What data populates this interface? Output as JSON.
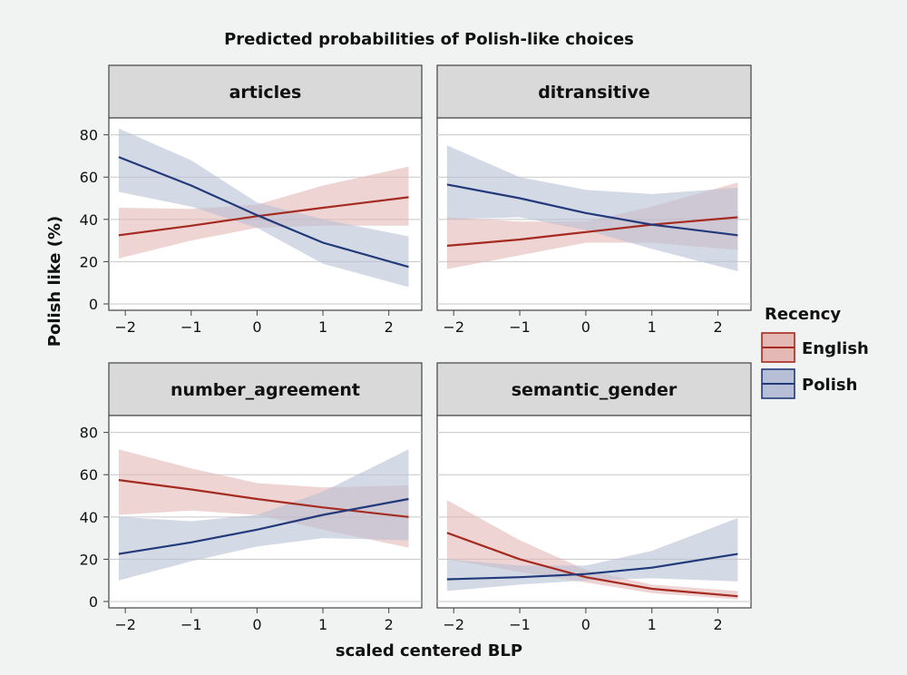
{
  "title": "Predicted probabilities of Polish-like choices",
  "xlabel": "scaled centered BLP",
  "ylabel": "Polish like (%)",
  "legend": {
    "title": "Recency",
    "items": [
      {
        "name": "English",
        "color": "#a52a20"
      },
      {
        "name": "Polish",
        "color": "#223a7a"
      }
    ]
  },
  "colors": {
    "english_line": "#a52a20",
    "english_band": "#e3b8b5",
    "polish_line": "#223a7a",
    "polish_band": "#b7bfd6",
    "panel_bg": "#ffffff",
    "strip_bg": "#d9d9d9",
    "grid": "#c7c7c7"
  },
  "chart_data": {
    "type": "line",
    "x_ticks": [
      -2,
      -1,
      0,
      1,
      2
    ],
    "y_ticks": [
      0,
      20,
      40,
      60,
      80
    ],
    "xlim": [
      -2.25,
      2.5
    ],
    "ylim": [
      -3,
      88
    ],
    "panels": [
      {
        "name": "articles",
        "series": [
          {
            "name": "English",
            "x": [
              -2.1,
              -1,
              0,
              1,
              2.3
            ],
            "y": [
              32.5,
              37,
              41.5,
              45.5,
              50.5
            ],
            "lower": [
              21.5,
              30,
              36,
              37,
              37
            ],
            "upper": [
              45.5,
              45,
              47,
              56,
              65
            ]
          },
          {
            "name": "Polish",
            "x": [
              -2.1,
              -1,
              0,
              1,
              2.3
            ],
            "y": [
              69.5,
              56,
              42,
              29,
              17.5
            ],
            "lower": [
              53,
              46,
              36,
              19,
              8
            ],
            "upper": [
              83,
              68,
              48,
              40,
              32
            ]
          }
        ]
      },
      {
        "name": "ditransitive",
        "series": [
          {
            "name": "English",
            "x": [
              -2.1,
              -1,
              0,
              1,
              2.3
            ],
            "y": [
              27.5,
              30.5,
              34,
              37.5,
              41
            ],
            "lower": [
              16.5,
              23,
              29,
              29,
              25.5
            ],
            "upper": [
              41,
              39,
              39,
              46,
              57.5
            ]
          },
          {
            "name": "Polish",
            "x": [
              -2.1,
              -1,
              0,
              1,
              2.3
            ],
            "y": [
              56.5,
              50,
              43,
              37.5,
              32.5
            ],
            "lower": [
              40,
              41,
              35,
              26,
              15.5
            ],
            "upper": [
              75,
              60,
              54,
              52,
              55
            ]
          }
        ]
      },
      {
        "name": "number_agreement",
        "series": [
          {
            "name": "English",
            "x": [
              -2.1,
              -1,
              0,
              1,
              2.3
            ],
            "y": [
              57.5,
              53,
              48.5,
              44.5,
              40
            ],
            "lower": [
              41,
              43,
              41,
              34,
              25.5
            ],
            "upper": [
              72,
              63,
              56,
              54,
              55
            ]
          },
          {
            "name": "Polish",
            "x": [
              -2.1,
              -1,
              0,
              1,
              2.3
            ],
            "y": [
              22.5,
              28,
              34,
              41,
              48.5
            ],
            "lower": [
              10,
              19,
              26,
              30,
              29
            ],
            "upper": [
              40,
              38,
              41,
              52,
              72
            ]
          }
        ]
      },
      {
        "name": "semantic_gender",
        "series": [
          {
            "name": "English",
            "x": [
              -2.1,
              -1,
              0,
              1,
              2.3
            ],
            "y": [
              32.5,
              20,
              11.5,
              6,
              2.5
            ],
            "lower": [
              20,
              14,
              9,
              4,
              1
            ],
            "upper": [
              48,
              29,
              15,
              8,
              5
            ]
          },
          {
            "name": "Polish",
            "x": [
              -2.1,
              -1,
              0,
              1,
              2.3
            ],
            "y": [
              10.5,
              11.5,
              13,
              16,
              22.5
            ],
            "lower": [
              5,
              8,
              10,
              11,
              9.5
            ],
            "upper": [
              20,
              17,
              17,
              24,
              39.5
            ]
          }
        ]
      }
    ]
  }
}
